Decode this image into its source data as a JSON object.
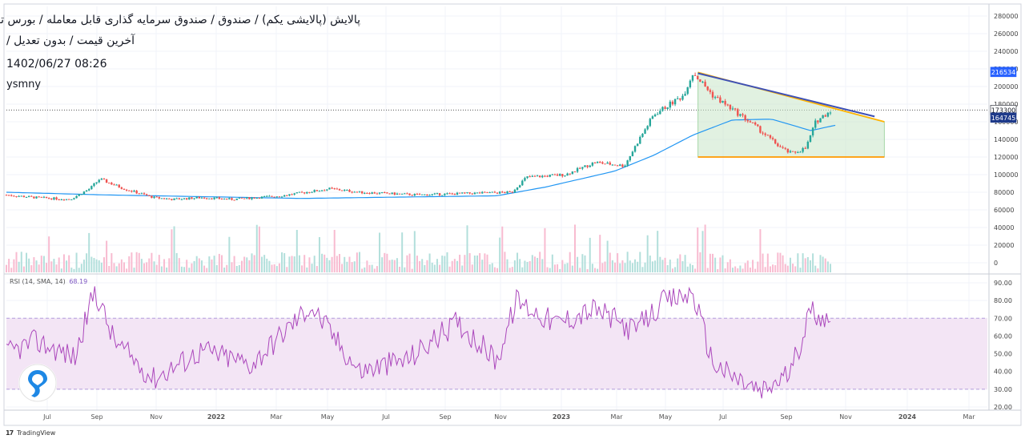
{
  "header": {
    "title_line1": "پالایش (پالایشی یکم) / صندوق / صندوق سرمایه گذاری قابل معامله / بورس تهران",
    "title_line2": "آخرین قیمت / بدون تعدیل /",
    "timestamp": "1402/06/27 08:26",
    "username": "ysmny"
  },
  "footer": {
    "brand_mark": "17",
    "brand_name": "TradingView"
  },
  "colors": {
    "candle_up": "#26a69a",
    "candle_down": "#ef5350",
    "ma_line": "#2196f3",
    "rsi_line": "#ab47bc",
    "rsi_band": "#f3e5f5",
    "triangle_fill": "#c8e6c9",
    "triangle_top": "#ffb300",
    "triangle_trend": "#3f51b5",
    "triangle_base": "#ff9800",
    "label_blue": "#2962ff"
  },
  "chart_data": [
    {
      "type": "candlestick",
      "name": "price",
      "x_ticks": [
        "Jul",
        "Sep",
        "Nov",
        "2022",
        "Mar",
        "May",
        "Jul",
        "Sep",
        "Nov",
        "2023",
        "Mar",
        "May",
        "Jul",
        "Sep",
        "Nov",
        "2024",
        "Mar"
      ],
      "y_ticks": [
        "280000",
        "260000",
        "240000",
        "220000",
        "200000",
        "180000",
        "160000",
        "140000",
        "120000",
        "100000",
        "80000",
        "60000",
        "40000",
        "20000",
        "0"
      ],
      "ylim": [
        0,
        280000
      ],
      "price_labels": [
        "216534",
        "173300",
        "164745"
      ],
      "price_anchors": [
        {
          "t": 0,
          "v": 77000
        },
        {
          "t": 0.03,
          "v": 74000
        },
        {
          "t": 0.065,
          "v": 72000
        },
        {
          "t": 0.085,
          "v": 84000
        },
        {
          "t": 0.095,
          "v": 95000
        },
        {
          "t": 0.12,
          "v": 84000
        },
        {
          "t": 0.15,
          "v": 74000
        },
        {
          "t": 0.17,
          "v": 72000
        },
        {
          "t": 0.2,
          "v": 74000
        },
        {
          "t": 0.23,
          "v": 72000
        },
        {
          "t": 0.28,
          "v": 76000
        },
        {
          "t": 0.33,
          "v": 84000
        },
        {
          "t": 0.36,
          "v": 80000
        },
        {
          "t": 0.42,
          "v": 77000
        },
        {
          "t": 0.48,
          "v": 79000
        },
        {
          "t": 0.515,
          "v": 80000
        },
        {
          "t": 0.53,
          "v": 97000
        },
        {
          "t": 0.57,
          "v": 100000
        },
        {
          "t": 0.6,
          "v": 114000
        },
        {
          "t": 0.63,
          "v": 110000
        },
        {
          "t": 0.645,
          "v": 140000
        },
        {
          "t": 0.66,
          "v": 168000
        },
        {
          "t": 0.69,
          "v": 190000
        },
        {
          "t": 0.7,
          "v": 216000
        },
        {
          "t": 0.72,
          "v": 190000
        },
        {
          "t": 0.76,
          "v": 158000
        },
        {
          "t": 0.79,
          "v": 130000
        },
        {
          "t": 0.8,
          "v": 124000
        },
        {
          "t": 0.815,
          "v": 130000
        },
        {
          "t": 0.825,
          "v": 160000
        },
        {
          "t": 0.84,
          "v": 173000
        }
      ],
      "ma_anchors": [
        {
          "t": 0,
          "v": 80000
        },
        {
          "t": 0.1,
          "v": 77000
        },
        {
          "t": 0.3,
          "v": 73000
        },
        {
          "t": 0.5,
          "v": 76000
        },
        {
          "t": 0.55,
          "v": 86000
        },
        {
          "t": 0.62,
          "v": 104000
        },
        {
          "t": 0.66,
          "v": 122000
        },
        {
          "t": 0.7,
          "v": 145000
        },
        {
          "t": 0.74,
          "v": 162000
        },
        {
          "t": 0.78,
          "v": 163000
        },
        {
          "t": 0.82,
          "v": 150000
        },
        {
          "t": 0.845,
          "v": 156000
        }
      ],
      "triangle_pattern": {
        "top_start": {
          "t": 0.705,
          "v": 216000
        },
        "top_end": {
          "t": 0.895,
          "v": 160000
        },
        "base_start": {
          "t": 0.705,
          "v": 120000
        },
        "base_end": {
          "t": 0.895,
          "v": 120000
        },
        "trend_start": {
          "t": 0.705,
          "v": 215000
        },
        "trend_end": {
          "t": 0.885,
          "v": 166000
        }
      }
    },
    {
      "type": "line",
      "name": "RSI (14, SMA, 14)",
      "value_label": "68.19",
      "y_ticks": [
        "90.00",
        "80.00",
        "70.00",
        "60.00",
        "50.00",
        "40.00",
        "30.00",
        "20.00"
      ],
      "ylim": [
        20,
        90
      ],
      "band": [
        30,
        70
      ],
      "anchors": [
        {
          "t": 0,
          "v": 50
        },
        {
          "t": 0.03,
          "v": 57
        },
        {
          "t": 0.07,
          "v": 48
        },
        {
          "t": 0.09,
          "v": 86
        },
        {
          "t": 0.11,
          "v": 57
        },
        {
          "t": 0.15,
          "v": 36
        },
        {
          "t": 0.2,
          "v": 52
        },
        {
          "t": 0.25,
          "v": 44
        },
        {
          "t": 0.31,
          "v": 77
        },
        {
          "t": 0.36,
          "v": 40
        },
        {
          "t": 0.41,
          "v": 47
        },
        {
          "t": 0.46,
          "v": 68
        },
        {
          "t": 0.5,
          "v": 46
        },
        {
          "t": 0.52,
          "v": 80
        },
        {
          "t": 0.56,
          "v": 67
        },
        {
          "t": 0.6,
          "v": 75
        },
        {
          "t": 0.64,
          "v": 63
        },
        {
          "t": 0.67,
          "v": 79
        },
        {
          "t": 0.7,
          "v": 84
        },
        {
          "t": 0.72,
          "v": 45
        },
        {
          "t": 0.74,
          "v": 37
        },
        {
          "t": 0.77,
          "v": 28
        },
        {
          "t": 0.8,
          "v": 40
        },
        {
          "t": 0.82,
          "v": 75
        },
        {
          "t": 0.84,
          "v": 68
        }
      ]
    }
  ]
}
